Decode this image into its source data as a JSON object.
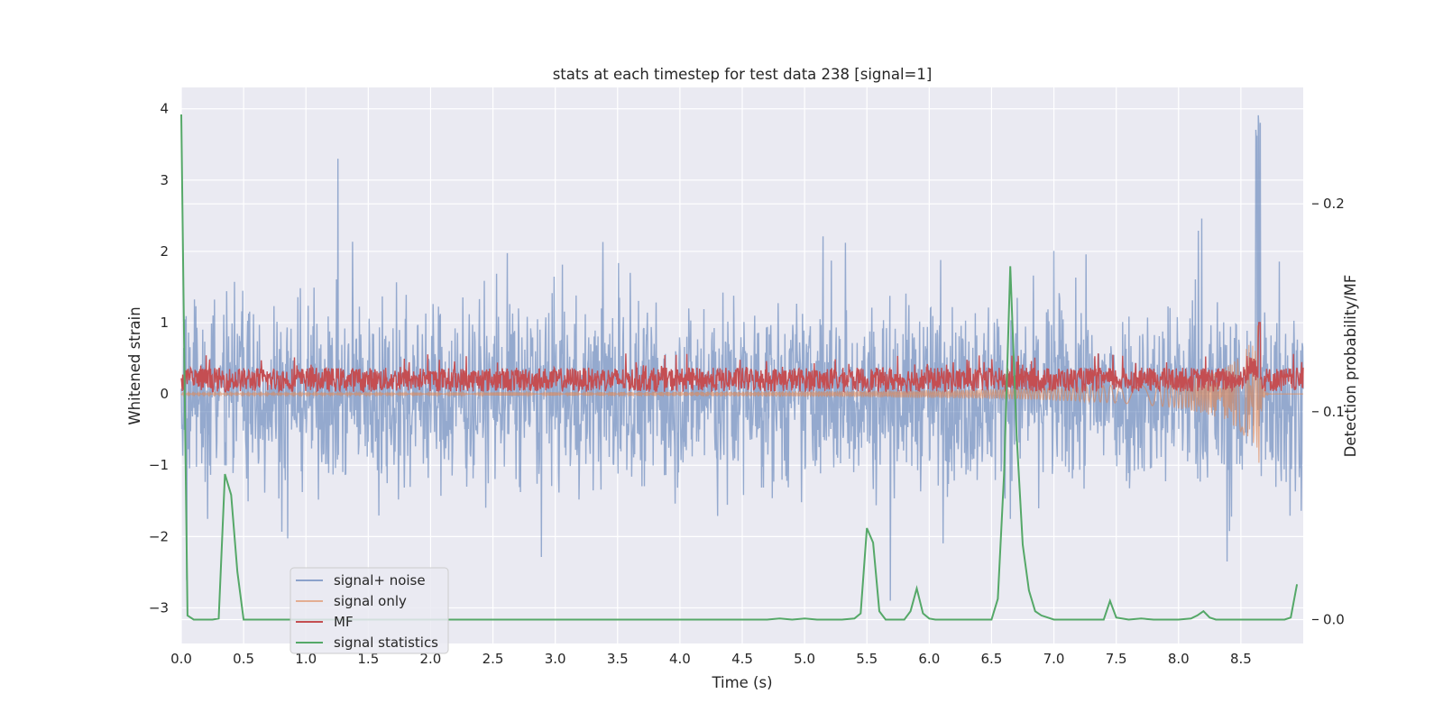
{
  "chart_data": {
    "type": "line",
    "title": "stats at each timestep for test data 238 [signal=1]",
    "xlabel": "Time (s)",
    "ylabel": "Whitened strain",
    "y2label": "Detection probability/MF",
    "xlim": [
      0.0,
      9.0
    ],
    "ylim": [
      -3.5,
      4.3
    ],
    "y2lim": [
      -0.0115,
      0.256
    ],
    "xticks": [
      "0.0",
      "0.5",
      "1.0",
      "1.5",
      "2.0",
      "2.5",
      "3.0",
      "3.5",
      "4.0",
      "4.5",
      "5.0",
      "5.5",
      "6.0",
      "6.5",
      "7.0",
      "7.5",
      "8.0",
      "8.5"
    ],
    "xtick_values": [
      0,
      0.5,
      1,
      1.5,
      2,
      2.5,
      3,
      3.5,
      4,
      4.5,
      5,
      5.5,
      6,
      6.5,
      7,
      7.5,
      8,
      8.5
    ],
    "yticks": [
      "−3",
      "−2",
      "−1",
      "0",
      "1",
      "2",
      "3",
      "4"
    ],
    "ytick_values": [
      -3,
      -2,
      -1,
      0,
      1,
      2,
      3,
      4
    ],
    "y2ticks": [
      "0.0",
      "0.1",
      "0.2"
    ],
    "y2tick_values": [
      0,
      0.1,
      0.2
    ],
    "grid": true,
    "legend_position": "lower left",
    "colors": {
      "signal_noise": "#4c72b0",
      "signal_only": "#dd8452",
      "mf": "#c44e52",
      "stats": "#55a868",
      "plot_bg": "#eaeaf2",
      "grid": "#ffffff",
      "text": "#262626"
    },
    "series": [
      {
        "name": "signal+ noise",
        "axis": "left",
        "description_points": {
          "approx_envelope": [
            -2.4,
            2.6
          ],
          "peak": [
            8.65,
            4.0
          ]
        }
      },
      {
        "name": "signal only",
        "axis": "left",
        "description_points": {
          "chirp_peak_time": 8.65,
          "chirp_min": -1.1,
          "chirp_max": 1.0
        }
      },
      {
        "name": "MF",
        "axis": "left",
        "description_points": {
          "baseline_range": [
            0.0,
            0.4
          ],
          "peak": [
            8.65,
            1.0
          ]
        }
      },
      {
        "name": "signal statistics",
        "axis": "right",
        "x": [
          0.0,
          0.05,
          0.1,
          0.15,
          0.2,
          0.25,
          0.3,
          0.35,
          0.4,
          0.45,
          0.5,
          0.55,
          4.6,
          4.7,
          4.8,
          4.9,
          5.0,
          5.1,
          5.2,
          5.3,
          5.4,
          5.45,
          5.5,
          5.55,
          5.6,
          5.65,
          5.7,
          5.8,
          5.85,
          5.9,
          5.95,
          6.0,
          6.05,
          6.1,
          6.2,
          6.3,
          6.4,
          6.5,
          6.55,
          6.6,
          6.65,
          6.7,
          6.75,
          6.8,
          6.85,
          6.9,
          7.0,
          7.1,
          7.2,
          7.3,
          7.4,
          7.45,
          7.5,
          7.6,
          7.7,
          7.8,
          7.9,
          8.0,
          8.1,
          8.15,
          8.2,
          8.25,
          8.3,
          8.4,
          8.5,
          8.6,
          8.7,
          8.8,
          8.85,
          8.9,
          8.95
        ],
        "values": [
          0.243,
          0.002,
          0.0,
          0.0,
          0.0,
          0.0,
          0.0005,
          0.07,
          0.06,
          0.023,
          0.0,
          0.0,
          0.0,
          0.0,
          0.0005,
          0.0,
          0.0005,
          0.0,
          0.0,
          0.0,
          0.0005,
          0.003,
          0.044,
          0.037,
          0.004,
          0.0,
          0.0,
          0.0,
          0.004,
          0.015,
          0.003,
          0.0005,
          0.0,
          0.0,
          0.0,
          0.0,
          0.0,
          0.0,
          0.01,
          0.07,
          0.17,
          0.09,
          0.036,
          0.014,
          0.004,
          0.002,
          0.0,
          0.0,
          0.0,
          0.0,
          0.0,
          0.009,
          0.001,
          0.0,
          0.0005,
          0.0,
          0.0,
          0.0,
          0.0005,
          0.002,
          0.004,
          0.001,
          0.0,
          0.0,
          0.0,
          0.0,
          0.0,
          0.0,
          0.0,
          0.001,
          0.017
        ]
      }
    ]
  }
}
